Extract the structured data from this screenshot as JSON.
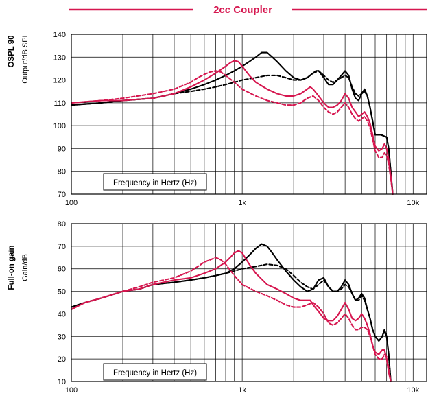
{
  "header": {
    "title": "2cc Coupler",
    "accent": "#d6164f"
  },
  "chart_data": [
    {
      "type": "line",
      "ylabel_bold": "OSPL 90",
      "ylabel": "Output/dB SPL",
      "xlabel": "Frequency in Hertz (Hz)",
      "xscale": "log",
      "xlim": [
        100,
        12000
      ],
      "ylim": [
        70,
        140
      ],
      "xticks": [
        100,
        1000,
        10000
      ],
      "xtick_labels": [
        "100",
        "1k",
        "10k"
      ],
      "yticks": [
        70,
        80,
        90,
        100,
        110,
        120,
        130,
        140
      ],
      "grid": true,
      "series": [
        {
          "color": "#000000",
          "dash": "solid",
          "x": [
            100,
            150,
            200,
            300,
            400,
            500,
            600,
            700,
            800,
            900,
            1000,
            1100,
            1200,
            1300,
            1400,
            1500,
            1600,
            1800,
            2000,
            2200,
            2400,
            2600,
            2700,
            2800,
            3000,
            3200,
            3400,
            3600,
            3800,
            4000,
            4200,
            4400,
            4600,
            4800,
            5000,
            5200,
            5400,
            5600,
            5800,
            6000,
            6500,
            7000,
            7200,
            7400,
            7600
          ],
          "y": [
            109,
            110,
            111,
            112,
            114,
            116,
            118,
            120,
            122,
            124,
            126,
            128,
            130,
            132,
            132,
            130,
            128,
            124,
            121,
            120,
            121,
            123,
            124,
            124,
            121,
            118,
            118,
            120,
            122,
            124,
            122,
            116,
            112,
            111,
            114,
            116,
            113,
            108,
            102,
            96,
            96,
            95,
            90,
            80,
            70
          ]
        },
        {
          "color": "#000000",
          "dash": "dashed",
          "x": [
            100,
            150,
            200,
            300,
            400,
            500,
            600,
            700,
            800,
            900,
            1000,
            1200,
            1400,
            1600,
            1800,
            2000,
            2200,
            2400,
            2600,
            2800,
            3000,
            3200,
            3400,
            3600,
            3800,
            4000,
            4200,
            4400,
            4600,
            4800,
            5000,
            5200,
            5400,
            5600,
            5800,
            6000,
            6500,
            7000,
            7200,
            7400,
            7600
          ],
          "y": [
            109,
            110,
            111,
            112,
            114,
            115,
            116,
            117,
            118,
            119,
            120,
            121,
            122,
            122,
            121,
            120,
            120,
            121,
            123,
            124,
            122,
            120,
            119,
            120,
            121,
            122,
            121,
            117,
            114,
            113,
            114,
            115,
            113,
            108,
            102,
            96,
            96,
            95,
            90,
            80,
            70
          ]
        },
        {
          "color": "#d6164f",
          "dash": "solid",
          "x": [
            100,
            150,
            200,
            300,
            400,
            500,
            600,
            700,
            800,
            850,
            900,
            950,
            1000,
            1100,
            1200,
            1400,
            1600,
            1800,
            2000,
            2200,
            2400,
            2500,
            2600,
            2800,
            3000,
            3200,
            3400,
            3600,
            3800,
            4000,
            4200,
            4400,
            4600,
            4800,
            5000,
            5200,
            5400,
            5600,
            5800,
            6000,
            6300,
            6600,
            6800,
            7000,
            7200,
            7400,
            7600
          ],
          "y": [
            110,
            111,
            111,
            112,
            114,
            117,
            120,
            123,
            126,
            127.5,
            128.5,
            128,
            126,
            122,
            119,
            116,
            114,
            113,
            113,
            114,
            116,
            117,
            116,
            113,
            110,
            108,
            108,
            109,
            111,
            114,
            112,
            108,
            106,
            104,
            105,
            106,
            104,
            101,
            96,
            91,
            89,
            90,
            92,
            90,
            85,
            78,
            70
          ]
        },
        {
          "color": "#d6164f",
          "dash": "dashed",
          "x": [
            100,
            150,
            200,
            300,
            400,
            500,
            550,
            600,
            650,
            700,
            750,
            800,
            900,
            1000,
            1200,
            1400,
            1600,
            1800,
            2000,
            2200,
            2400,
            2600,
            2800,
            3000,
            3200,
            3400,
            3600,
            3800,
            4000,
            4200,
            4400,
            4600,
            4800,
            5000,
            5200,
            5400,
            5600,
            5800,
            6000,
            6300,
            6600,
            6800,
            7000,
            7200,
            7400,
            7600
          ],
          "y": [
            110,
            111,
            112,
            114,
            116,
            119,
            121,
            122.5,
            123.5,
            124,
            123.5,
            122,
            119,
            116,
            113,
            111,
            110,
            109,
            109,
            110,
            112,
            113,
            111,
            108,
            106,
            105,
            106,
            108,
            110,
            108,
            105,
            103,
            102,
            103,
            104,
            102,
            99,
            94,
            89,
            86,
            86,
            88,
            87,
            83,
            77,
            70
          ]
        }
      ]
    },
    {
      "type": "line",
      "ylabel_bold": "Full-on gain",
      "ylabel": "Gain/dB",
      "xlabel": "Frequency in Hertz (Hz)",
      "xscale": "log",
      "xlim": [
        100,
        12000
      ],
      "ylim": [
        10,
        80
      ],
      "xticks": [
        100,
        1000,
        10000
      ],
      "xtick_labels": [
        "100",
        "1k",
        "10k"
      ],
      "yticks": [
        10,
        20,
        30,
        40,
        50,
        60,
        70,
        80
      ],
      "grid": true,
      "series": [
        {
          "color": "#000000",
          "dash": "solid",
          "x": [
            100,
            120,
            150,
            200,
            250,
            300,
            400,
            500,
            600,
            700,
            800,
            900,
            1000,
            1100,
            1200,
            1300,
            1400,
            1500,
            1600,
            1800,
            2000,
            2200,
            2400,
            2600,
            2800,
            3000,
            3200,
            3400,
            3600,
            3800,
            4000,
            4200,
            4400,
            4600,
            4800,
            5000,
            5200,
            5400,
            5600,
            5800,
            6000,
            6300,
            6600,
            6800,
            7000,
            7200,
            7400
          ],
          "y": [
            43,
            45,
            47,
            50,
            51,
            53,
            54,
            55,
            56,
            57,
            58,
            60,
            63,
            66,
            69,
            71,
            70,
            67,
            64,
            59,
            55,
            52,
            50,
            51,
            55,
            56,
            52,
            50,
            50,
            52,
            55,
            53,
            49,
            46,
            47,
            49,
            47,
            42,
            38,
            33,
            30,
            28,
            30,
            33,
            30,
            22,
            10
          ]
        },
        {
          "color": "#000000",
          "dash": "dashed",
          "x": [
            100,
            120,
            150,
            200,
            250,
            300,
            400,
            500,
            600,
            700,
            800,
            900,
            1000,
            1200,
            1400,
            1600,
            1800,
            2000,
            2200,
            2400,
            2600,
            2800,
            3000,
            3200,
            3400,
            3600,
            3800,
            4000,
            4200,
            4400,
            4600,
            4800,
            5000,
            5200,
            5400,
            5600,
            5800,
            6000,
            6300,
            6600,
            6800,
            7000,
            7200,
            7400
          ],
          "y": [
            43,
            45,
            47,
            50,
            51,
            53,
            54,
            55,
            56,
            57,
            58,
            59,
            60,
            61,
            62,
            61.5,
            60,
            57,
            54,
            52,
            51,
            53,
            55,
            52,
            50,
            50,
            51,
            53,
            52,
            49,
            46,
            46,
            48,
            46,
            42,
            38,
            33,
            30,
            28,
            30,
            32,
            30,
            22,
            10
          ]
        },
        {
          "color": "#d6164f",
          "dash": "solid",
          "x": [
            100,
            120,
            150,
            200,
            250,
            300,
            400,
            500,
            600,
            700,
            800,
            850,
            900,
            950,
            1000,
            1100,
            1200,
            1400,
            1600,
            1800,
            2000,
            2200,
            2400,
            2500,
            2600,
            2800,
            3000,
            3200,
            3400,
            3600,
            3800,
            4000,
            4200,
            4400,
            4600,
            4800,
            5000,
            5200,
            5400,
            5600,
            5800,
            6000,
            6300,
            6600,
            6800,
            7000,
            7200,
            7400
          ],
          "y": [
            42,
            45,
            47,
            50,
            51,
            53,
            55,
            56,
            58,
            60,
            63,
            65,
            67,
            68,
            67,
            62,
            58,
            53,
            51,
            49,
            47,
            46,
            46,
            46,
            44,
            41,
            38,
            37,
            37,
            39,
            42,
            45,
            42,
            38,
            37,
            38,
            40,
            38,
            35,
            31,
            26,
            23,
            22,
            24,
            24,
            20,
            14,
            10
          ]
        },
        {
          "color": "#d6164f",
          "dash": "dashed",
          "x": [
            100,
            120,
            150,
            200,
            250,
            300,
            400,
            500,
            550,
            600,
            650,
            700,
            750,
            800,
            900,
            1000,
            1200,
            1400,
            1600,
            1800,
            2000,
            2200,
            2400,
            2600,
            2800,
            3000,
            3200,
            3400,
            3600,
            3800,
            4000,
            4200,
            4400,
            4600,
            4800,
            5000,
            5200,
            5400,
            5600,
            5800,
            6000,
            6300,
            6600,
            6800,
            7000,
            7200,
            7400
          ],
          "y": [
            42,
            45,
            47,
            50,
            52,
            54,
            56,
            59,
            61,
            63,
            64,
            65,
            64,
            62,
            57,
            53,
            50,
            48,
            46,
            44,
            43,
            43,
            44,
            45,
            43,
            40,
            36,
            35,
            36,
            38,
            40,
            38,
            35,
            33,
            33,
            34,
            34,
            33,
            30,
            26,
            22,
            20,
            20,
            22,
            21,
            16,
            10
          ]
        }
      ]
    }
  ]
}
